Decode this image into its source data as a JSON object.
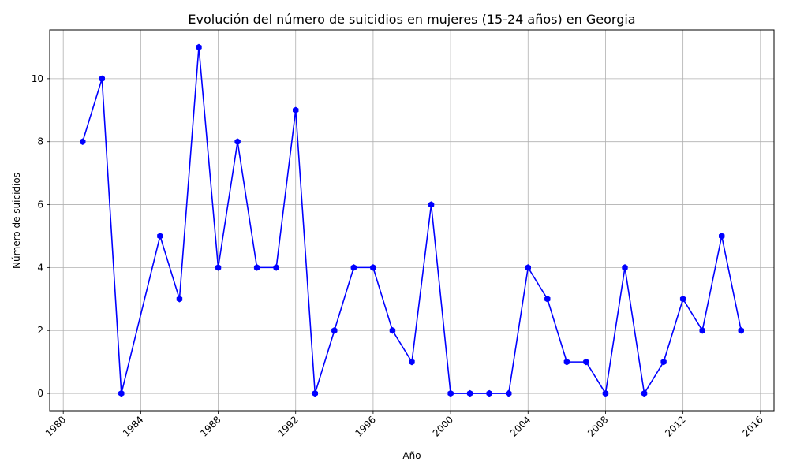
{
  "chart_data": {
    "type": "line",
    "title": "Evolución del número de suicidios en mujeres (15-24 años) en Georgia",
    "xlabel": "Año",
    "ylabel": "Número de suicidios",
    "xlim": [
      1979.3,
      2016.7
    ],
    "ylim": [
      -0.55,
      11.55
    ],
    "x_ticks": [
      1980,
      1984,
      1988,
      1992,
      1996,
      2000,
      2004,
      2008,
      2012,
      2016
    ],
    "y_ticks": [
      0,
      2,
      4,
      6,
      8,
      10
    ],
    "grid": true,
    "line_color": "#0000ff",
    "grid_color": "#b0b0b0",
    "series": [
      {
        "x": [
          1981,
          1982,
          1983,
          1985,
          1986,
          1987,
          1988,
          1989,
          1990,
          1991,
          1992,
          1993,
          1994,
          1995,
          1996,
          1997,
          1998,
          1999,
          2000,
          2001,
          2002,
          2003,
          2004,
          2005,
          2006,
          2007,
          2008,
          2009,
          2010,
          2011,
          2012,
          2013,
          2014,
          2015
        ],
        "values": [
          8,
          10,
          0,
          5,
          3,
          11,
          4,
          8,
          4,
          4,
          9,
          0,
          2,
          4,
          4,
          2,
          1,
          6,
          0,
          0,
          0,
          0,
          4,
          3,
          1,
          1,
          0,
          4,
          0,
          1,
          3,
          2,
          5,
          2
        ]
      }
    ]
  }
}
